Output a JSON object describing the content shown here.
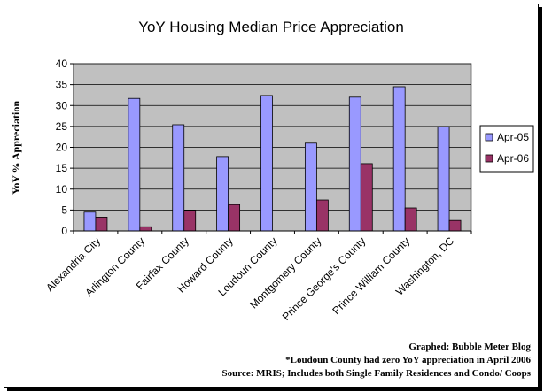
{
  "chart_data": {
    "type": "bar",
    "title": "YoY Housing Median Price Appreciation",
    "ylabel": "YoY % Appreciation",
    "xlabel": "",
    "ylim": [
      0,
      40
    ],
    "yticks": [
      0,
      5,
      10,
      15,
      20,
      25,
      30,
      35,
      40
    ],
    "grid": true,
    "legend_position": "right",
    "categories": [
      "Alexandria City",
      "Arlington County",
      "Fairfax County",
      "Howard County",
      "Loudoun County",
      "Montgomery County",
      "Prince George's County",
      "Prince William County",
      "Washington, DC"
    ],
    "series": [
      {
        "name": "Apr-05",
        "color": "#9999ff",
        "values": [
          4.5,
          31.7,
          25.4,
          17.8,
          32.4,
          21.0,
          32.0,
          34.5,
          25.0
        ]
      },
      {
        "name": "Apr-06",
        "color": "#993366",
        "values": [
          3.3,
          1.0,
          4.9,
          6.3,
          0,
          7.4,
          16.1,
          5.5,
          2.5
        ]
      }
    ],
    "plot_background": "#c0c0c0",
    "notes": [
      "Graphed: Bubble Meter Blog",
      "*Loudoun County had zero YoY appreciation in April 2006",
      "Source: MRIS; Includes both Single Family Residences and Condo/ Coops"
    ]
  }
}
